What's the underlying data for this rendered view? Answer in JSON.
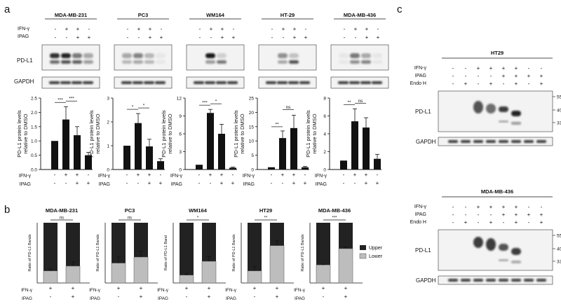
{
  "panel_labels": {
    "a": "a",
    "b": "b",
    "c": "c"
  },
  "cell_lines": [
    "MDA-MB-231",
    "PC3",
    "WM164",
    "HT-29",
    "MDA-MB-436"
  ],
  "cell_lines_b": [
    "MDA-MB-231",
    "PC3",
    "WM164",
    "HT29",
    "MDA-MB-436"
  ],
  "labels": {
    "ifng": "IFN-γ",
    "ipag": "IPAG",
    "endoh": "Endo H",
    "pdl1": "PD-L1",
    "gapdh": "GAPDH",
    "ylabel_a_1": "PD-L1 protein levels",
    "ylabel_a_2": "relative to DMSO",
    "ylabel_b": "Ratio of PD-L1 Bands",
    "ylabel_b_alt": "Ratio of PD-L1 Band",
    "upper": "Upper",
    "lower": "Lower",
    "plus": "+",
    "minus": "-"
  },
  "blot_a": {
    "ifng": [
      "-",
      "+",
      "+",
      "-"
    ],
    "ipag": [
      "-",
      "-",
      "+",
      "+"
    ]
  },
  "blot_c": {
    "titles": [
      "HT29",
      "MDA-MB-436"
    ],
    "ifng": [
      "-",
      "-",
      "+",
      "+",
      "+",
      "+",
      "-",
      "-"
    ],
    "ipag": [
      "-",
      "-",
      "-",
      "-",
      "+",
      "+",
      "+",
      "+"
    ],
    "endoh": [
      "-",
      "+",
      "-",
      "+",
      "-",
      "+",
      "-",
      "+"
    ],
    "kda": [
      "55 kDa",
      "40 kDa",
      "33 kDa"
    ]
  },
  "chart_data": [
    {
      "type": "bar",
      "title": "",
      "panel": "a",
      "ylabel": "PD-L1 protein levels relative to DMSO",
      "ylim": [
        0,
        2.5
      ],
      "yticks": [
        0,
        0.5,
        1,
        1.5,
        2,
        2.5
      ],
      "yticklabels": [
        "0.0",
        "0.5",
        "1.0",
        "1.5",
        "2.0",
        "2.5"
      ],
      "values": [
        1.0,
        1.75,
        1.2,
        0.5
      ],
      "errors": [
        0,
        0.45,
        0.3,
        0.1
      ],
      "sig": [
        {
          "from": 0,
          "to": 1,
          "label": "***"
        },
        {
          "from": 1,
          "to": 2,
          "label": "***"
        }
      ]
    },
    {
      "type": "bar",
      "title": "",
      "panel": "a",
      "ylabel": "PD-L1 protein levels relative to DMSO",
      "ylim": [
        0,
        3
      ],
      "yticks": [
        0,
        1,
        2,
        3
      ],
      "yticklabels": [
        "0",
        "1",
        "2",
        "3"
      ],
      "values": [
        1.0,
        1.95,
        0.97,
        0.35
      ],
      "errors": [
        0,
        0.4,
        0.3,
        0.1
      ],
      "sig": [
        {
          "from": 0,
          "to": 1,
          "label": "*"
        },
        {
          "from": 1,
          "to": 2,
          "label": "*"
        }
      ]
    },
    {
      "type": "bar",
      "title": "",
      "panel": "a",
      "ylabel": "PD-L1 protein levels relative to DMSO",
      "ylim": [
        0,
        12
      ],
      "yticks": [
        0,
        3,
        6,
        9,
        12
      ],
      "yticklabels": [
        "0",
        "3",
        "6",
        "9",
        "12"
      ],
      "values": [
        0.8,
        9.5,
        6.0,
        0.3
      ],
      "errors": [
        0,
        0.6,
        1.6,
        0.1
      ],
      "sig": [
        {
          "from": 0,
          "to": 1,
          "label": "***"
        },
        {
          "from": 1,
          "to": 2,
          "label": "*"
        }
      ]
    },
    {
      "type": "bar",
      "title": "",
      "panel": "a",
      "ylabel": "PD-L1 protein levels relative to DMSO",
      "ylim": [
        0,
        25
      ],
      "yticks": [
        0,
        5,
        10,
        15,
        20,
        25
      ],
      "yticklabels": [
        "0",
        "5",
        "10",
        "15",
        "20",
        "25"
      ],
      "values": [
        0.8,
        11.0,
        14.5,
        0.8
      ],
      "errors": [
        0,
        2.5,
        4.5,
        0.3
      ],
      "sig": [
        {
          "from": 0,
          "to": 1,
          "label": "**"
        },
        {
          "from": 1,
          "to": 2,
          "label": "ns"
        }
      ]
    },
    {
      "type": "bar",
      "title": "",
      "panel": "a",
      "ylabel": "PD-L1 protein levels relative to DMSO",
      "ylim": [
        0,
        8
      ],
      "yticks": [
        0,
        2,
        4,
        6,
        8
      ],
      "yticklabels": [
        "0",
        "2",
        "4",
        "6",
        "8"
      ],
      "values": [
        1.0,
        5.4,
        4.7,
        1.2
      ],
      "errors": [
        0,
        1.4,
        1.1,
        0.5
      ],
      "sig": [
        {
          "from": 0,
          "to": 1,
          "label": "**"
        },
        {
          "from": 1,
          "to": 2,
          "label": "ns"
        }
      ]
    },
    {
      "type": "bar",
      "title": "",
      "panel": "b",
      "stacked": true,
      "ylabel": "Ratio of PD-L1 Bands",
      "ylim": [
        0,
        1
      ],
      "series": [
        {
          "name": "Lower",
          "values": [
            0.2,
            0.28
          ]
        },
        {
          "name": "Upper",
          "values": [
            0.8,
            0.72
          ]
        }
      ],
      "errors": [
        0.03,
        0.07
      ],
      "sig": "ns"
    },
    {
      "type": "bar",
      "title": "",
      "panel": "b",
      "stacked": true,
      "ylabel": "Ratio of PD-L1 Bands",
      "ylim": [
        0,
        1
      ],
      "series": [
        {
          "name": "Lower",
          "values": [
            0.33,
            0.43
          ]
        },
        {
          "name": "Upper",
          "values": [
            0.67,
            0.57
          ]
        }
      ],
      "errors": [
        0.1,
        0.1
      ],
      "sig": "ns"
    },
    {
      "type": "bar",
      "title": "",
      "panel": "b",
      "stacked": true,
      "ylabel": "Ratio of PD-L1 Band",
      "ylim": [
        0,
        1
      ],
      "series": [
        {
          "name": "Lower",
          "values": [
            0.13,
            0.36
          ]
        },
        {
          "name": "Upper",
          "values": [
            0.87,
            0.64
          ]
        }
      ],
      "errors": [
        0.02,
        0.08
      ],
      "sig": "*"
    },
    {
      "type": "bar",
      "title": "",
      "panel": "b",
      "stacked": true,
      "ylabel": "Ratio of PD-L1 Bands",
      "ylim": [
        0,
        1
      ],
      "series": [
        {
          "name": "Lower",
          "values": [
            0.2,
            0.62
          ]
        },
        {
          "name": "Upper",
          "values": [
            0.8,
            0.38
          ]
        }
      ],
      "errors": [
        0.07,
        0.08
      ],
      "sig": "**"
    },
    {
      "type": "bar",
      "title": "",
      "panel": "b",
      "stacked": true,
      "ylabel": "Ratio of PD-L1 Bands",
      "ylim": [
        0,
        1
      ],
      "series": [
        {
          "name": "Lower",
          "values": [
            0.3,
            0.57
          ]
        },
        {
          "name": "Upper",
          "values": [
            0.7,
            0.43
          ]
        }
      ],
      "errors": [
        0.01,
        0.03
      ],
      "sig": "***"
    }
  ]
}
